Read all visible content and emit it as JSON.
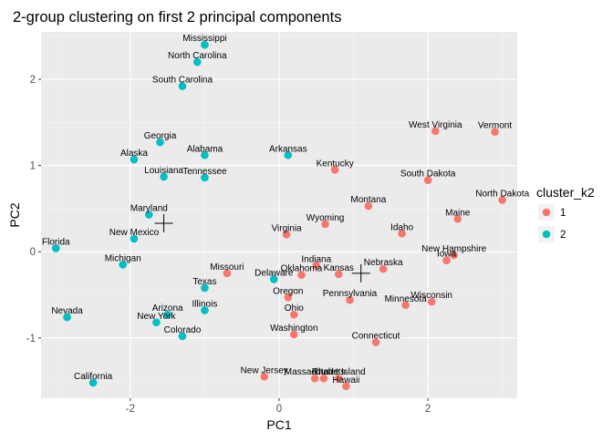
{
  "chart_data": {
    "type": "scatter",
    "title": "2-group clustering on first 2 principal components",
    "xlabel": "PC1",
    "ylabel": "PC2",
    "xlim": [
      -3.2,
      3.2
    ],
    "ylim": [
      -1.7,
      2.55
    ],
    "xticks": [
      -2,
      0,
      2
    ],
    "yticks": [
      -1,
      0,
      1,
      2
    ],
    "grid": true,
    "legend": {
      "title": "cluster_k2",
      "position": "right",
      "entries": [
        {
          "label": "1",
          "color": "#F8766D"
        },
        {
          "label": "2",
          "color": "#00BFC4"
        }
      ]
    },
    "centroids": [
      {
        "cluster": "1",
        "x": 1.1,
        "y": -0.25
      },
      {
        "cluster": "2",
        "x": -1.55,
        "y": 0.33
      }
    ],
    "points": [
      {
        "label": "Mississippi",
        "x": -1.0,
        "y": 2.4,
        "cluster": "2"
      },
      {
        "label": "North Carolina",
        "x": -1.1,
        "y": 2.2,
        "cluster": "2"
      },
      {
        "label": "South Carolina",
        "x": -1.3,
        "y": 1.92,
        "cluster": "2"
      },
      {
        "label": "Georgia",
        "x": -1.6,
        "y": 1.27,
        "cluster": "2"
      },
      {
        "label": "Alaska",
        "x": -1.95,
        "y": 1.07,
        "cluster": "2"
      },
      {
        "label": "Alabama",
        "x": -1.0,
        "y": 1.12,
        "cluster": "2"
      },
      {
        "label": "Arkansas",
        "x": 0.12,
        "y": 1.12,
        "cluster": "2"
      },
      {
        "label": "Louisiana",
        "x": -1.55,
        "y": 0.87,
        "cluster": "2"
      },
      {
        "label": "Tennessee",
        "x": -1.0,
        "y": 0.86,
        "cluster": "2"
      },
      {
        "label": "Maryland",
        "x": -1.75,
        "y": 0.43,
        "cluster": "2"
      },
      {
        "label": "New Mexico",
        "x": -1.95,
        "y": 0.15,
        "cluster": "2"
      },
      {
        "label": "Florida",
        "x": -3.0,
        "y": 0.04,
        "cluster": "2"
      },
      {
        "label": "Michigan",
        "x": -2.1,
        "y": -0.15,
        "cluster": "2"
      },
      {
        "label": "Texas",
        "x": -1.0,
        "y": -0.42,
        "cluster": "2"
      },
      {
        "label": "Delaware",
        "x": -0.07,
        "y": -0.32,
        "cluster": "2"
      },
      {
        "label": "Illinois",
        "x": -1.0,
        "y": -0.68,
        "cluster": "2"
      },
      {
        "label": "Arizona",
        "x": -1.5,
        "y": -0.73,
        "cluster": "2"
      },
      {
        "label": "New York",
        "x": -1.65,
        "y": -0.82,
        "cluster": "2"
      },
      {
        "label": "Nevada",
        "x": -2.85,
        "y": -0.76,
        "cluster": "2"
      },
      {
        "label": "Colorado",
        "x": -1.3,
        "y": -0.98,
        "cluster": "2"
      },
      {
        "label": "California",
        "x": -2.5,
        "y": -1.52,
        "cluster": "2"
      },
      {
        "label": "West Virginia",
        "x": 2.1,
        "y": 1.4,
        "cluster": "1"
      },
      {
        "label": "Vermont",
        "x": 2.9,
        "y": 1.39,
        "cluster": "1"
      },
      {
        "label": "Kentucky",
        "x": 0.75,
        "y": 0.95,
        "cluster": "1"
      },
      {
        "label": "South Dakota",
        "x": 2.0,
        "y": 0.83,
        "cluster": "1"
      },
      {
        "label": "North Dakota",
        "x": 3.0,
        "y": 0.6,
        "cluster": "1"
      },
      {
        "label": "Montana",
        "x": 1.2,
        "y": 0.53,
        "cluster": "1"
      },
      {
        "label": "Maine",
        "x": 2.4,
        "y": 0.38,
        "cluster": "1"
      },
      {
        "label": "Wyoming",
        "x": 0.62,
        "y": 0.32,
        "cluster": "1"
      },
      {
        "label": "Virginia",
        "x": 0.1,
        "y": 0.2,
        "cluster": "1"
      },
      {
        "label": "Idaho",
        "x": 1.65,
        "y": 0.21,
        "cluster": "1"
      },
      {
        "label": "New Hampshire",
        "x": 2.35,
        "y": -0.04,
        "cluster": "1"
      },
      {
        "label": "Iowa",
        "x": 2.25,
        "y": -0.1,
        "cluster": "1"
      },
      {
        "label": "Nebraska",
        "x": 1.4,
        "y": -0.2,
        "cluster": "1"
      },
      {
        "label": "Missouri",
        "x": -0.7,
        "y": -0.25,
        "cluster": "1"
      },
      {
        "label": "Indiana",
        "x": 0.5,
        "y": -0.16,
        "cluster": "1"
      },
      {
        "label": "Oklahoma",
        "x": 0.3,
        "y": -0.27,
        "cluster": "1"
      },
      {
        "label": "Kansas",
        "x": 0.8,
        "y": -0.26,
        "cluster": "1"
      },
      {
        "label": "Oregon",
        "x": 0.12,
        "y": -0.53,
        "cluster": "1"
      },
      {
        "label": "Pennsylvania",
        "x": 0.95,
        "y": -0.56,
        "cluster": "1"
      },
      {
        "label": "Minnesota",
        "x": 1.7,
        "y": -0.62,
        "cluster": "1"
      },
      {
        "label": "Wisconsin",
        "x": 2.05,
        "y": -0.58,
        "cluster": "1"
      },
      {
        "label": "Ohio",
        "x": 0.2,
        "y": -0.73,
        "cluster": "1"
      },
      {
        "label": "Washington",
        "x": 0.2,
        "y": -0.96,
        "cluster": "1"
      },
      {
        "label": "Connecticut",
        "x": 1.3,
        "y": -1.05,
        "cluster": "1"
      },
      {
        "label": "New Jersey",
        "x": -0.2,
        "y": -1.45,
        "cluster": "1"
      },
      {
        "label": "Massachusetts",
        "x": 0.48,
        "y": -1.47,
        "cluster": "1"
      },
      {
        "label": "Utah",
        "x": 0.6,
        "y": -1.47,
        "cluster": "1"
      },
      {
        "label": "Rhode Island",
        "x": 0.8,
        "y": -1.47,
        "cluster": "1"
      },
      {
        "label": "Hawaii",
        "x": 0.9,
        "y": -1.56,
        "cluster": "1"
      }
    ]
  }
}
